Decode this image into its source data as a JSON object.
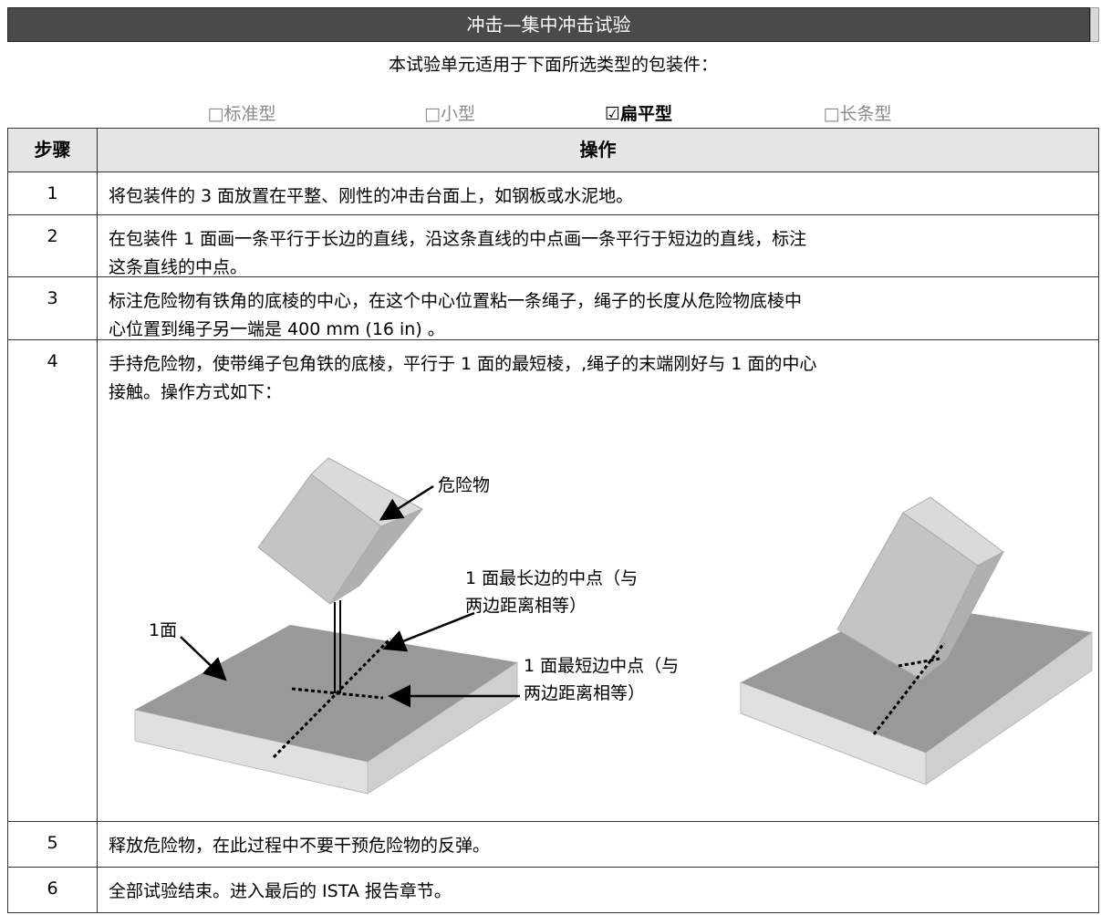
{
  "header": {
    "title": "冲击—集中冲击试验"
  },
  "applicability": {
    "intro": "本试验单元适用于下面所选类型的包装件：",
    "types": [
      {
        "label": "□标准型",
        "checked": false
      },
      {
        "label": "□小型",
        "checked": false
      },
      {
        "label": "☑扁平型",
        "checked": true
      },
      {
        "label": "□长条型",
        "checked": false
      }
    ]
  },
  "table": {
    "columns": [
      "步骤",
      "操作"
    ],
    "rows": [
      [
        "1",
        [
          "将包装件的 3 面放置在平整、刚性的冲击台面上，如钢板或水泥地。"
        ]
      ],
      [
        "2",
        [
          "在包装件 1 面画一条平行于长边的直线，沿这条直线的中点画一条平行于短边的直线，标注",
          "这条直线的中点。"
        ]
      ],
      [
        "3",
        [
          "标注危险物有铁角的底棱的中心，在这个中心位置粘一条绳子，绳子的长度从危险物底棱中",
          "心位置到绳子另一端是 400 mm (16 in) 。"
        ]
      ],
      [
        "4",
        [
          "手持危险物，使带绳子包角铁的底棱，平行于 1 面的最短棱，,绳子的末端刚好与 1 面的中心",
          "接触。操作方式如下："
        ]
      ],
      [
        "5",
        [
          "释放危险物，在此过程中不要干预危险物的反弹。"
        ]
      ],
      [
        "6",
        [
          "全部试验结束。进入最后的 ISTA 报告章节。"
        ]
      ]
    ]
  },
  "figure": {
    "hazard": "危险物",
    "long_edge_midpoint": [
      "1 面最长边的中点（与",
      "两边距离相等）"
    ],
    "face": "1面",
    "short_edge_midpoint": [
      "1 面最短边中点（与",
      "两边距离相等）"
    ]
  }
}
